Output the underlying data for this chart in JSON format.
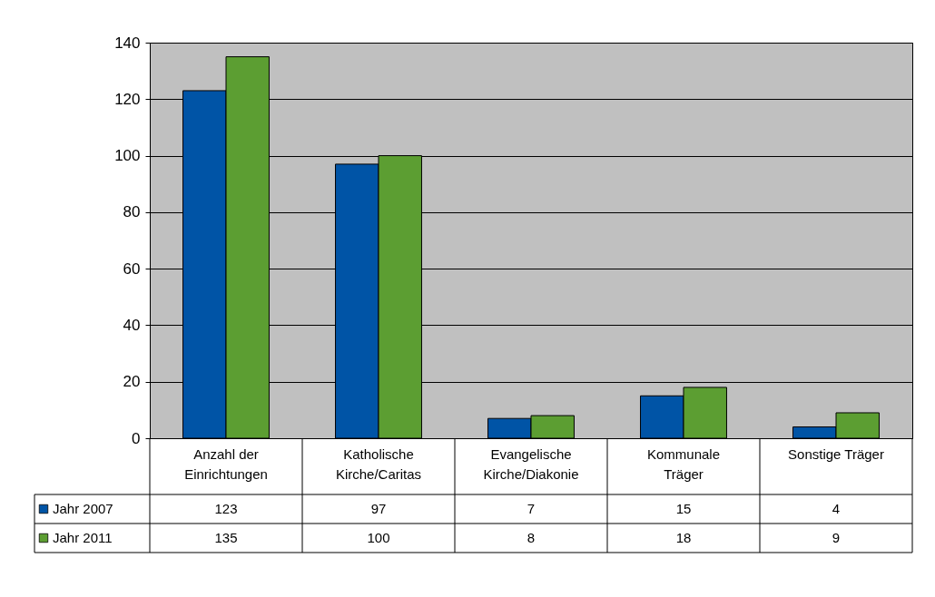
{
  "chart_data": {
    "type": "bar",
    "categories": [
      "Anzahl der Einrichtungen",
      "Katholische Kirche/Caritas",
      "Evangelische Kirche/Diakonie",
      "Kommunale Träger",
      "Sonstige Träger"
    ],
    "series": [
      {
        "name": "Jahr 2007",
        "color": "#0054a6",
        "values": [
          123,
          97,
          7,
          15,
          4
        ]
      },
      {
        "name": "Jahr 2011",
        "color": "#5c9e32",
        "values": [
          135,
          100,
          8,
          18,
          9
        ]
      }
    ],
    "ylim": [
      0,
      140
    ],
    "yticks": [
      0,
      20,
      40,
      60,
      80,
      100,
      120,
      140
    ],
    "grid": "y",
    "legend": "bottom left",
    "data_labels": true
  }
}
